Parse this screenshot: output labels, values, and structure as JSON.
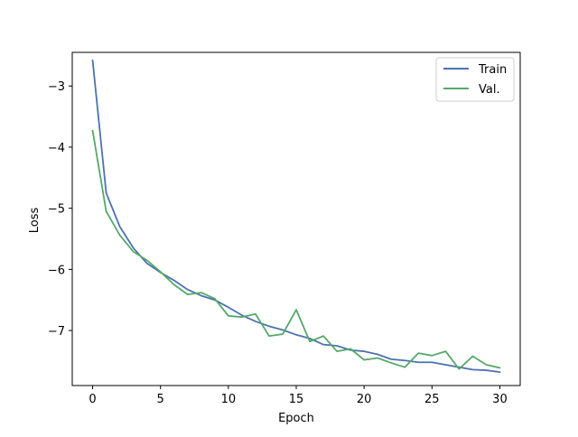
{
  "chart_data": {
    "type": "line",
    "title": "",
    "xlabel": "Epoch",
    "ylabel": "Loss",
    "xlim": [
      -1.5,
      31.5
    ],
    "ylim": [
      -7.9,
      -2.45
    ],
    "xticks": [
      0,
      5,
      10,
      15,
      20,
      25,
      30
    ],
    "yticks": [
      -7,
      -6,
      -5,
      -4,
      -3
    ],
    "ytick_labels": [
      "−7",
      "−6",
      "−5",
      "−4",
      "−3"
    ],
    "grid": false,
    "legend": {
      "position": "top-right",
      "entries": [
        "Train",
        "Val."
      ]
    },
    "x": [
      0,
      1,
      2,
      3,
      4,
      5,
      6,
      7,
      8,
      9,
      10,
      11,
      12,
      13,
      14,
      15,
      16,
      17,
      18,
      19,
      20,
      21,
      22,
      23,
      24,
      25,
      26,
      27,
      28,
      29,
      30
    ],
    "series": [
      {
        "name": "Train",
        "color": "#4c72b0",
        "values": [
          -2.58,
          -4.75,
          -5.3,
          -5.65,
          -5.9,
          -6.05,
          -6.18,
          -6.33,
          -6.43,
          -6.5,
          -6.62,
          -6.75,
          -6.85,
          -6.93,
          -6.99,
          -7.07,
          -7.13,
          -7.23,
          -7.25,
          -7.32,
          -7.34,
          -7.39,
          -7.47,
          -7.49,
          -7.52,
          -7.52,
          -7.56,
          -7.6,
          -7.64,
          -7.65,
          -7.68
        ]
      },
      {
        "name": "Val.",
        "color": "#55a868",
        "values": [
          -3.73,
          -5.05,
          -5.44,
          -5.71,
          -5.85,
          -6.04,
          -6.25,
          -6.41,
          -6.38,
          -6.48,
          -6.76,
          -6.78,
          -6.73,
          -7.09,
          -7.06,
          -6.66,
          -7.18,
          -7.09,
          -7.34,
          -7.3,
          -7.48,
          -7.45,
          -7.53,
          -7.6,
          -7.37,
          -7.41,
          -7.34,
          -7.63,
          -7.42,
          -7.56,
          -7.61
        ]
      }
    ]
  }
}
